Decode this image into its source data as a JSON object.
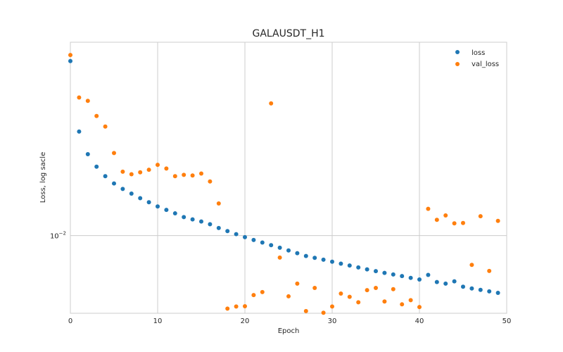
{
  "chart_data": {
    "type": "scatter",
    "title": "GALAUSDT_H1",
    "xlabel": "Epoch",
    "ylabel": "Loss, log sacle",
    "xlim": [
      0,
      50
    ],
    "ylim": [
      0.0065,
      0.0292
    ],
    "y_scale": "log",
    "grid": true,
    "legend_position": "top-right",
    "x_ticks": [
      {
        "value": 0,
        "label": "0"
      },
      {
        "value": 10,
        "label": "10"
      },
      {
        "value": 20,
        "label": "20"
      },
      {
        "value": 30,
        "label": "30"
      },
      {
        "value": 40,
        "label": "40"
      },
      {
        "value": 50,
        "label": "50"
      }
    ],
    "y_ticks": [
      {
        "value": 0.01,
        "base": "10",
        "exponent": "−2"
      }
    ],
    "series": [
      {
        "name": "loss",
        "color": "#1f77b4",
        "x": [
          0,
          1,
          2,
          3,
          4,
          5,
          6,
          7,
          8,
          9,
          10,
          11,
          12,
          13,
          14,
          15,
          16,
          17,
          18,
          19,
          20,
          21,
          22,
          23,
          24,
          25,
          26,
          27,
          28,
          29,
          30,
          31,
          32,
          33,
          34,
          35,
          36,
          37,
          38,
          39,
          40,
          41,
          42,
          43,
          44,
          45,
          46,
          47,
          48,
          49
        ],
        "y": [
          0.0263,
          0.0178,
          0.0157,
          0.01465,
          0.0139,
          0.01335,
          0.01295,
          0.01262,
          0.0123,
          0.01203,
          0.01175,
          0.01153,
          0.01131,
          0.01108,
          0.01094,
          0.01081,
          0.01065,
          0.01043,
          0.01025,
          0.01008,
          0.00991,
          0.00976,
          0.00962,
          0.00948,
          0.00935,
          0.00921,
          0.00907,
          0.00893,
          0.00884,
          0.00875,
          0.00865,
          0.00856,
          0.00847,
          0.00838,
          0.00829,
          0.00821,
          0.00813,
          0.00806,
          0.00799,
          0.00791,
          0.00784,
          0.00804,
          0.00773,
          0.00766,
          0.00776,
          0.00753,
          0.00746,
          0.0074,
          0.00734,
          0.00728
        ]
      },
      {
        "name": "val_loss",
        "color": "#ff7f0e",
        "x": [
          0,
          1,
          2,
          3,
          4,
          5,
          6,
          7,
          8,
          9,
          10,
          11,
          12,
          13,
          14,
          15,
          16,
          17,
          18,
          19,
          20,
          21,
          22,
          23,
          24,
          25,
          26,
          27,
          28,
          29,
          30,
          31,
          32,
          33,
          34,
          35,
          36,
          37,
          38,
          39,
          40,
          41,
          42,
          43,
          44,
          45,
          46,
          47,
          48,
          49
        ],
        "y": [
          0.0272,
          0.0215,
          0.0211,
          0.0194,
          0.0183,
          0.0158,
          0.01425,
          0.01405,
          0.0142,
          0.0144,
          0.0148,
          0.0145,
          0.0139,
          0.014,
          0.01395,
          0.0141,
          0.0135,
          0.01195,
          0.00667,
          0.00675,
          0.00676,
          0.00719,
          0.00731,
          0.0208,
          0.00885,
          0.00714,
          0.00766,
          0.00658,
          0.00748,
          0.00652,
          0.00675,
          0.00725,
          0.00712,
          0.00691,
          0.00739,
          0.00748,
          0.00694,
          0.00743,
          0.00683,
          0.00699,
          0.00673,
          0.0116,
          0.01091,
          0.01118,
          0.0107,
          0.01072,
          0.0085,
          0.01113,
          0.00822,
          0.01085
        ]
      }
    ]
  }
}
